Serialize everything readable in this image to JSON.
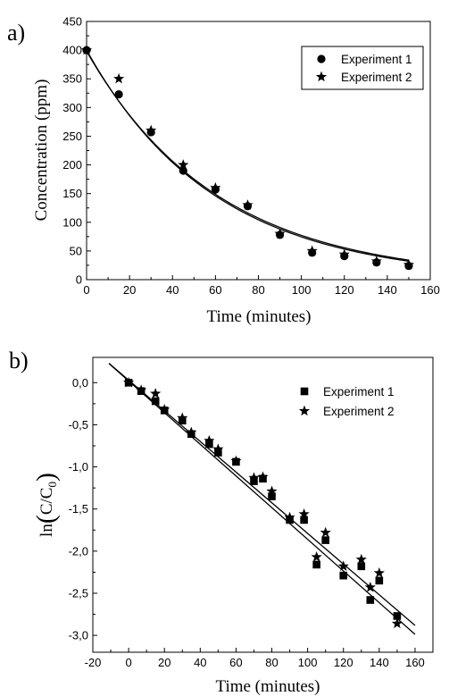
{
  "chart_data": [
    {
      "type": "scatter",
      "panel_label": "a)",
      "xlabel": "Time (minutes)",
      "ylabel": "Concentration (ppm)",
      "xlim": [
        0,
        160
      ],
      "ylim": [
        0,
        450
      ],
      "x_ticks": [
        "0",
        "20",
        "40",
        "60",
        "80",
        "100",
        "120",
        "140",
        "160"
      ],
      "y_ticks": [
        "0",
        "50",
        "100",
        "150",
        "200",
        "250",
        "300",
        "350",
        "400",
        "450"
      ],
      "legend_position": "top-right",
      "series": [
        {
          "name": "Experiment 1",
          "marker": "circle",
          "x": [
            0,
            15,
            30,
            45,
            60,
            75,
            90,
            105,
            120,
            135,
            150
          ],
          "y": [
            400,
            323,
            257,
            190,
            157,
            128,
            78,
            47,
            41,
            30,
            24
          ]
        },
        {
          "name": "Experiment 2",
          "marker": "star",
          "x": [
            0,
            15,
            30,
            45,
            60,
            75,
            90,
            105,
            120,
            135,
            150
          ],
          "y": [
            400,
            350,
            260,
            200,
            160,
            130,
            80,
            50,
            44,
            32,
            26
          ]
        }
      ],
      "fit_curves": [
        {
          "type": "exponential",
          "y0": 400,
          "k": 0.0168
        },
        {
          "type": "exponential",
          "y0": 398,
          "k": 0.0164
        }
      ]
    },
    {
      "type": "scatter",
      "panel_label": "b)",
      "xlabel": "Time (minutes)",
      "ylabel": "ln(C/C0)",
      "xlim": [
        -20,
        170
      ],
      "ylim": [
        -3.2,
        0.3
      ],
      "x_ticks": [
        "-20",
        "0",
        "20",
        "40",
        "60",
        "80",
        "100",
        "120",
        "140",
        "160"
      ],
      "y_ticks": [
        "0,0",
        "-0,5",
        "-1,0",
        "-1,5",
        "-2,0",
        "-2,5",
        "-3,0"
      ],
      "legend_position": "top-right",
      "series": [
        {
          "name": "Experiment 1",
          "marker": "square",
          "x": [
            0,
            7,
            15,
            20,
            30,
            35,
            45,
            50,
            60,
            70,
            75,
            80,
            90,
            98,
            105,
            110,
            120,
            130,
            135,
            140,
            150
          ],
          "y": [
            0.0,
            -0.1,
            -0.22,
            -0.33,
            -0.45,
            -0.61,
            -0.73,
            -0.83,
            -0.94,
            -1.17,
            -1.14,
            -1.35,
            -1.63,
            -1.63,
            -2.16,
            -1.87,
            -2.29,
            -2.18,
            -2.58,
            -2.35,
            -2.77
          ]
        },
        {
          "name": "Experiment 2",
          "marker": "star",
          "x": [
            0,
            7,
            15,
            20,
            30,
            35,
            45,
            50,
            60,
            70,
            75,
            80,
            90,
            98,
            105,
            110,
            120,
            130,
            135,
            140,
            150
          ],
          "y": [
            0.0,
            -0.09,
            -0.13,
            -0.32,
            -0.42,
            -0.59,
            -0.69,
            -0.79,
            -0.93,
            -1.13,
            -1.12,
            -1.29,
            -1.6,
            -1.56,
            -2.07,
            -1.78,
            -2.18,
            -2.1,
            -2.43,
            -2.26,
            -2.86
          ]
        }
      ],
      "fit_lines": [
        {
          "slope": -0.0188,
          "intercept": 0.02
        },
        {
          "slope": -0.0182,
          "intercept": 0.03
        }
      ]
    }
  ]
}
